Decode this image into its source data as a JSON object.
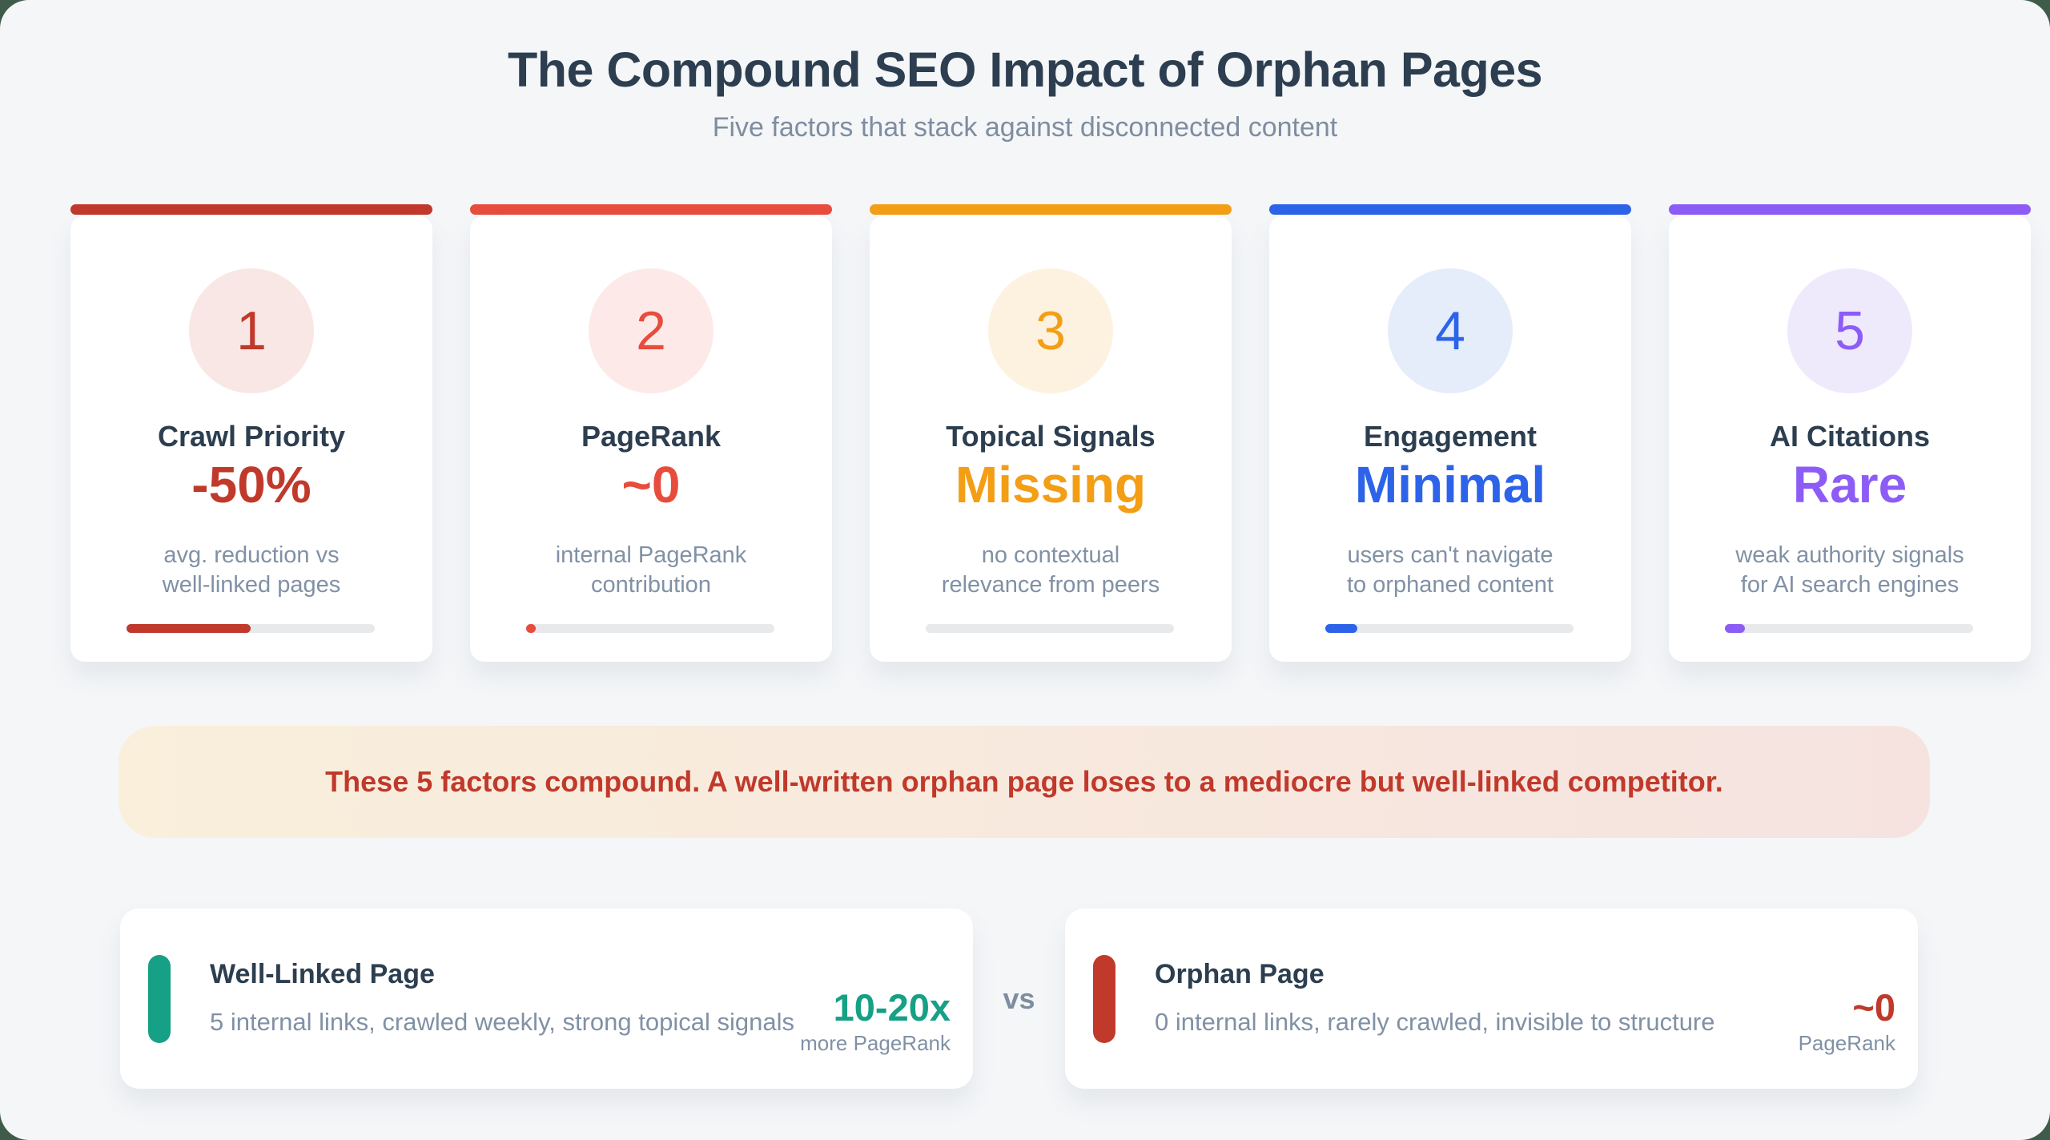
{
  "page": {
    "title": "The Compound SEO Impact of Orphan Pages",
    "subtitle": "Five factors that stack against disconnected content"
  },
  "factors": [
    {
      "number": "1",
      "title": "Crawl Priority",
      "value": "-50%",
      "description_lines": [
        "avg. reduction vs",
        "well-linked pages"
      ],
      "accent": "#c0392b",
      "circle_bg": "#f8e7e4",
      "progress_pct": 50
    },
    {
      "number": "2",
      "title": "PageRank",
      "value": "~0",
      "description_lines": [
        "internal PageRank",
        "contribution"
      ],
      "accent": "#e74c3c",
      "circle_bg": "#fdeae8",
      "progress_pct": 4
    },
    {
      "number": "3",
      "title": "Topical Signals",
      "value": "Missing",
      "description_lines": [
        "no contextual",
        "relevance from peers"
      ],
      "accent": "#f39e15",
      "circle_bg": "#fdf2e0",
      "progress_pct": 0
    },
    {
      "number": "4",
      "title": "Engagement",
      "value": "Minimal",
      "description_lines": [
        "users can't navigate",
        "to orphaned content"
      ],
      "accent": "#2d63e8",
      "circle_bg": "#e5ecfa",
      "progress_pct": 13
    },
    {
      "number": "5",
      "title": "AI Citations",
      "value": "Rare",
      "description_lines": [
        "weak authority signals",
        "for AI search engines"
      ],
      "accent": "#8d5cf6",
      "circle_bg": "#efe9fc",
      "progress_pct": 8
    }
  ],
  "banner": {
    "text": "These 5 factors compound. A well-written orphan page loses to a mediocre but well-linked competitor.",
    "text_color": "#c0392b"
  },
  "comparison": {
    "vs_label": "vs",
    "left": {
      "title": "Well-Linked Page",
      "description": "5 internal links, crawled weekly, strong topical signals",
      "stat_value": "10-20x",
      "stat_label": "more PageRank",
      "accent": "#16a085"
    },
    "right": {
      "title": "Orphan Page",
      "description": "0 internal links, rarely crawled, invisible to structure",
      "stat_value": "~0",
      "stat_label": "PageRank",
      "accent": "#c0392b"
    }
  }
}
